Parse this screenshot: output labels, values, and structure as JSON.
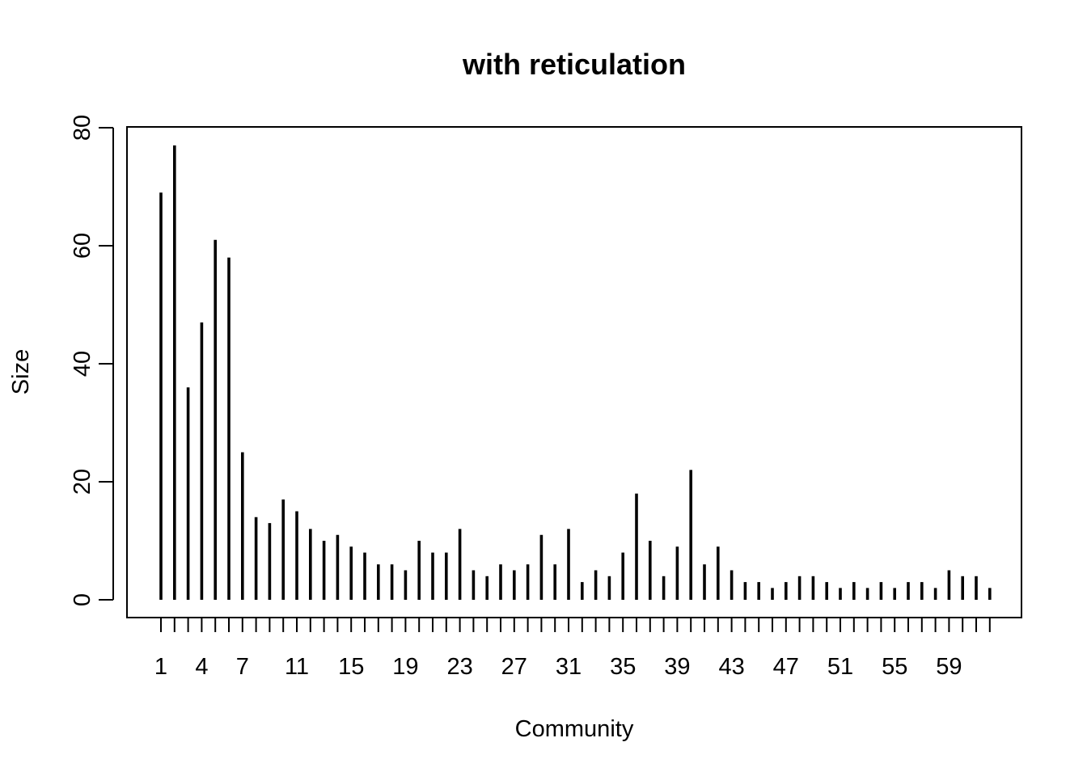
{
  "chart_data": {
    "type": "bar",
    "title": "with reticulation",
    "xlabel": "Community",
    "ylabel": "Size",
    "categories": [
      1,
      2,
      3,
      4,
      5,
      6,
      7,
      8,
      9,
      10,
      11,
      12,
      13,
      14,
      15,
      16,
      17,
      18,
      19,
      20,
      21,
      22,
      23,
      24,
      25,
      26,
      27,
      28,
      29,
      30,
      31,
      32,
      33,
      34,
      35,
      36,
      37,
      38,
      39,
      40,
      41,
      42,
      43,
      44,
      45,
      46,
      47,
      48,
      49,
      50,
      51,
      52,
      53,
      54,
      55,
      56,
      57,
      58,
      59,
      60,
      61,
      62
    ],
    "values": [
      69,
      77,
      36,
      47,
      61,
      58,
      25,
      14,
      13,
      17,
      15,
      12,
      10,
      11,
      9,
      8,
      6,
      6,
      5,
      10,
      8,
      8,
      12,
      5,
      4,
      6,
      5,
      6,
      11,
      6,
      12,
      3,
      5,
      4,
      8,
      18,
      10,
      4,
      9,
      22,
      6,
      9,
      5,
      3,
      3,
      2,
      3,
      4,
      4,
      3,
      2,
      3,
      2,
      3,
      2,
      3,
      3,
      2,
      5,
      4,
      4,
      2
    ],
    "x_tick_labels": [
      "1",
      "4",
      "7",
      "11",
      "15",
      "19",
      "23",
      "27",
      "31",
      "35",
      "39",
      "43",
      "47",
      "51",
      "55",
      "59"
    ],
    "y_ticks": [
      "0",
      "20",
      "40",
      "60",
      "80"
    ],
    "ylim": [
      0,
      80
    ],
    "grid": false,
    "legend": "none",
    "bar_color": "#000000"
  }
}
